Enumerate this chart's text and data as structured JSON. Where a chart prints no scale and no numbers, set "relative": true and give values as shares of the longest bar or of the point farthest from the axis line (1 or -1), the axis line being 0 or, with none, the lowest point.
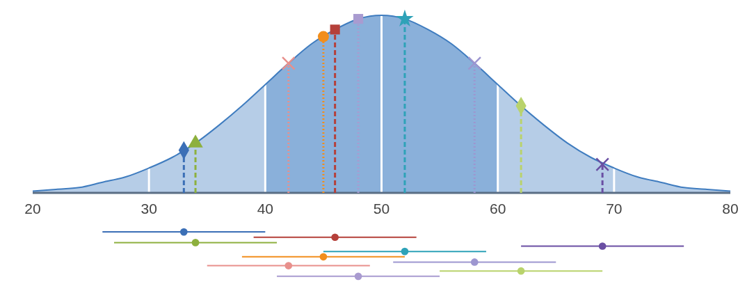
{
  "chart_data": {
    "type": "area",
    "relative": true,
    "xlim": [
      20,
      80
    ],
    "xticks": [
      20,
      30,
      40,
      50,
      60,
      70,
      80
    ],
    "bands": [
      {
        "axis": "x",
        "from": 40,
        "to": 60,
        "color": "#7ba6d6"
      }
    ],
    "ref_lines": [
      {
        "axis": "x",
        "value": 30,
        "color": "#ffffff"
      },
      {
        "axis": "x",
        "value": 40,
        "color": "#ffffff"
      },
      {
        "axis": "x",
        "value": 50,
        "color": "#ffffff"
      },
      {
        "axis": "x",
        "value": 60,
        "color": "#ffffff"
      },
      {
        "axis": "x",
        "value": 70,
        "color": "#ffffff"
      }
    ],
    "series": [
      {
        "type": "area",
        "color": "#3f7cbf",
        "x": [
          20,
          22,
          24,
          26,
          28,
          30,
          32,
          34,
          36,
          38,
          40,
          42,
          44,
          46,
          48,
          50,
          52,
          54,
          56,
          58,
          60,
          62,
          64,
          66,
          68,
          70,
          72,
          74,
          76,
          78,
          80
        ],
        "values": [
          0.01,
          0.02,
          0.03,
          0.06,
          0.09,
          0.14,
          0.2,
          0.28,
          0.38,
          0.49,
          0.61,
          0.73,
          0.84,
          0.92,
          0.98,
          1,
          0.98,
          0.92,
          0.84,
          0.73,
          0.61,
          0.49,
          0.38,
          0.28,
          0.2,
          0.14,
          0.09,
          0.06,
          0.03,
          0.02,
          0.01
        ]
      },
      {
        "type": "lollipop",
        "color": "#3b6fb6",
        "marker": "diamond",
        "line_style": "dashed",
        "x": [
          33
        ],
        "values": [
          0.24
        ]
      },
      {
        "type": "lollipop",
        "color": "#8db03e",
        "marker": "triangle",
        "line_style": "dashed",
        "x": [
          34
        ],
        "values": [
          0.28
        ]
      },
      {
        "type": "lollipop",
        "color": "#e8908c",
        "marker": "cross",
        "line_style": "dotted",
        "x": [
          42
        ],
        "values": [
          0.73
        ]
      },
      {
        "type": "lollipop",
        "color": "#f28e1c",
        "marker": "circle",
        "line_style": "dotted",
        "x": [
          45
        ],
        "values": [
          0.88
        ]
      },
      {
        "type": "lollipop",
        "color": "#b5403a",
        "marker": "square",
        "line_style": "dashed",
        "x": [
          46
        ],
        "values": [
          0.92
        ]
      },
      {
        "type": "lollipop",
        "color": "#a99bd0",
        "marker": "square",
        "line_style": "dotted",
        "x": [
          48
        ],
        "values": [
          0.98
        ]
      },
      {
        "type": "lollipop",
        "color": "#2ea2b8",
        "marker": "star",
        "line_style": "dashed",
        "x": [
          52
        ],
        "values": [
          0.98
        ]
      },
      {
        "type": "lollipop",
        "color": "#9d96d0",
        "marker": "cross",
        "line_style": "dotted",
        "x": [
          58
        ],
        "values": [
          0.73
        ]
      },
      {
        "type": "lollipop",
        "color": "#b9d36c",
        "marker": "diamond",
        "line_style": "dashed",
        "x": [
          62
        ],
        "values": [
          0.49
        ]
      },
      {
        "type": "lollipop",
        "color": "#6a4fa3",
        "marker": "cross",
        "line_style": "dashed",
        "x": [
          69
        ],
        "values": [
          0.16
        ]
      },
      {
        "type": "scatter",
        "color": "#3b6fb6",
        "marker": "circle",
        "x": [
          33
        ],
        "values": [
          -0.22
        ],
        "xerrors": [
          7
        ]
      },
      {
        "type": "scatter",
        "color": "#b5403a",
        "marker": "circle",
        "x": [
          46
        ],
        "values": [
          -0.25
        ],
        "xerrors": [
          7
        ]
      },
      {
        "type": "scatter",
        "color": "#8db03e",
        "marker": "circle",
        "x": [
          34
        ],
        "values": [
          -0.28
        ],
        "xerrors": [
          7
        ]
      },
      {
        "type": "scatter",
        "color": "#6a4fa3",
        "marker": "circle",
        "x": [
          69
        ],
        "values": [
          -0.3
        ],
        "xerrors": [
          7
        ]
      },
      {
        "type": "scatter",
        "color": "#2ea2b8",
        "marker": "circle",
        "x": [
          52
        ],
        "values": [
          -0.33
        ],
        "xerrors": [
          7
        ]
      },
      {
        "type": "scatter",
        "color": "#f28e1c",
        "marker": "circle",
        "x": [
          45
        ],
        "values": [
          -0.36
        ],
        "xerrors": [
          7
        ]
      },
      {
        "type": "scatter",
        "color": "#9d96d0",
        "marker": "circle",
        "x": [
          58
        ],
        "values": [
          -0.39
        ],
        "xerrors": [
          7
        ]
      },
      {
        "type": "scatter",
        "color": "#e8908c",
        "marker": "circle",
        "x": [
          42
        ],
        "values": [
          -0.41
        ],
        "xerrors": [
          7
        ]
      },
      {
        "type": "scatter",
        "color": "#b9d36c",
        "marker": "circle",
        "x": [
          62
        ],
        "values": [
          -0.44
        ],
        "xerrors": [
          7
        ]
      },
      {
        "type": "scatter",
        "color": "#a99bd0",
        "marker": "circle",
        "x": [
          48
        ],
        "values": [
          -0.47
        ],
        "xerrors": [
          7
        ]
      }
    ]
  }
}
